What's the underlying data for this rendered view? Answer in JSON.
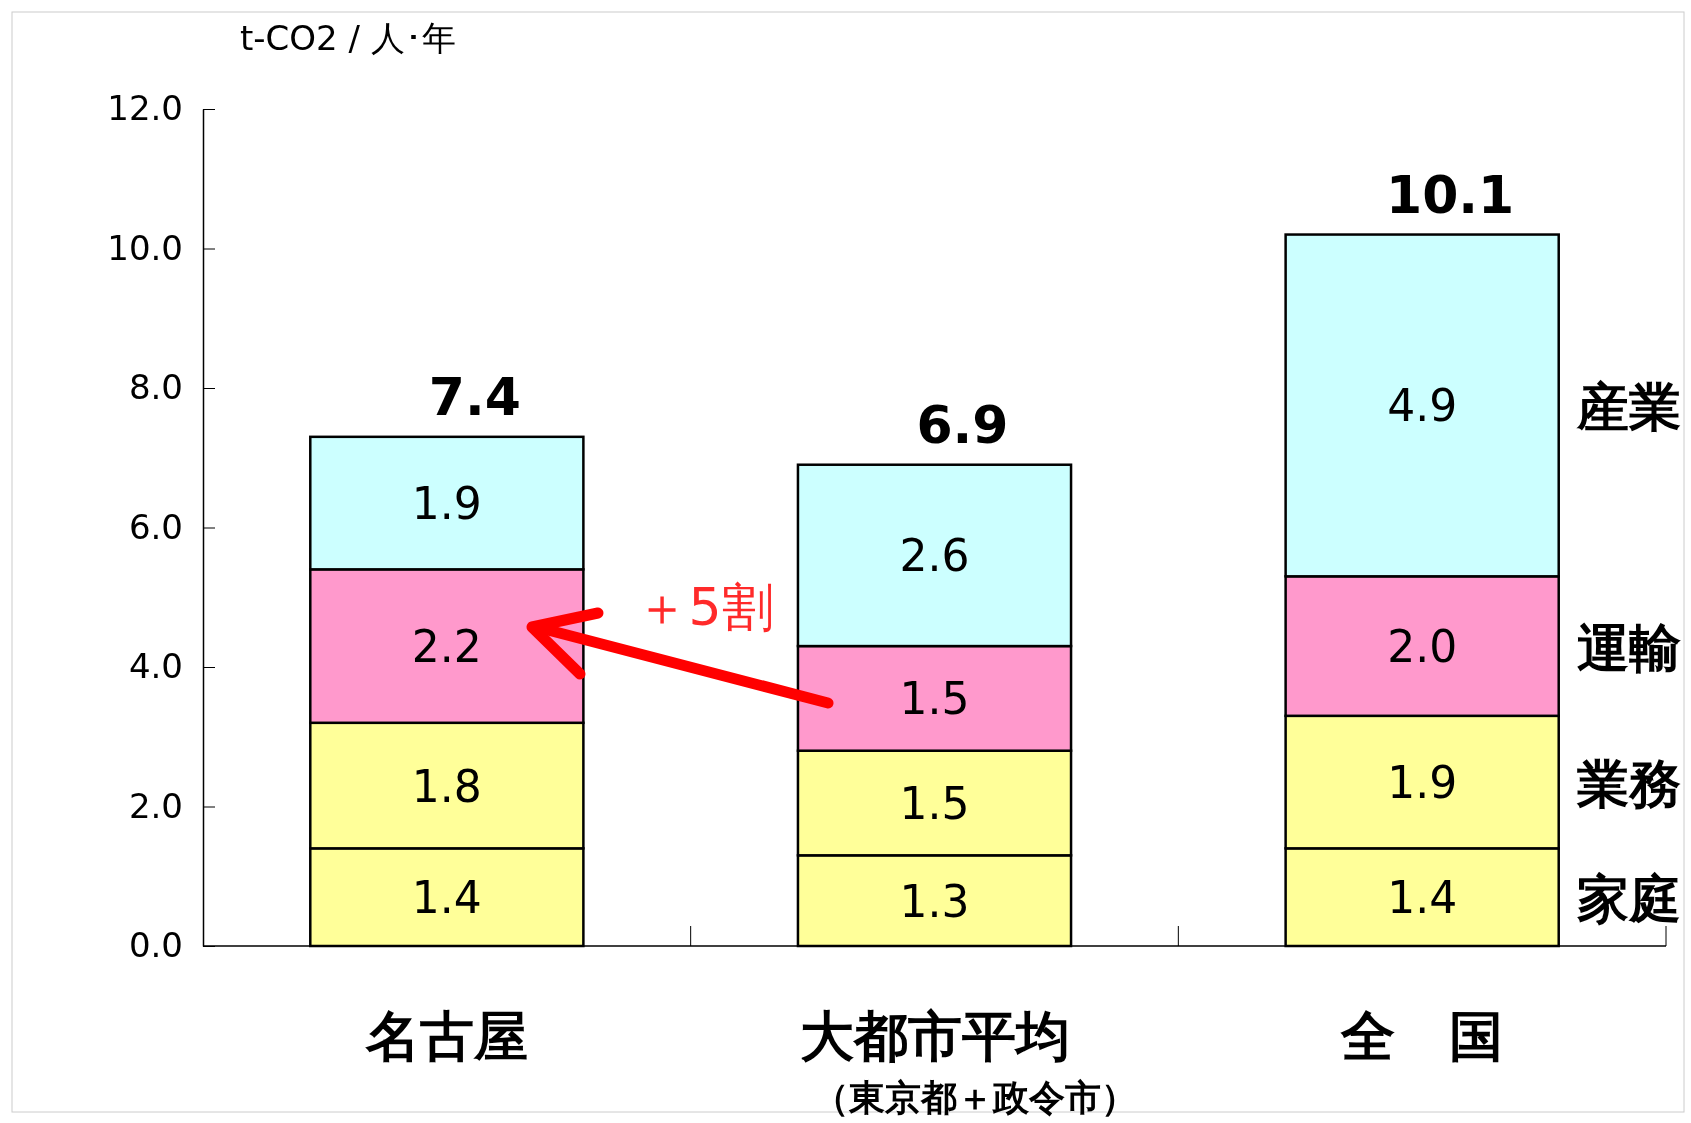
{
  "chart_data": {
    "type": "bar",
    "stacked": true,
    "ylabel": "t-CO2 / 人･年",
    "categories": [
      "名古屋",
      "大都市平均",
      "全　国"
    ],
    "series": [
      {
        "name": "家庭",
        "color": "#ffff99",
        "values": [
          1.4,
          1.3,
          1.4
        ]
      },
      {
        "name": "業務",
        "color": "#ffff99",
        "values": [
          1.8,
          1.5,
          1.9
        ]
      },
      {
        "name": "運輸",
        "color": "#ff99cc",
        "values": [
          2.2,
          1.5,
          2.0
        ],
        "value_labels": [
          "2.2",
          "1.5",
          "2.0"
        ]
      },
      {
        "name": "産業",
        "color": "#ccffff",
        "values": [
          1.9,
          2.6,
          4.9
        ]
      }
    ],
    "ylim": [
      0,
      12
    ],
    "yticks": [
      {
        "value": 0,
        "label": "0.0"
      },
      {
        "value": 2,
        "label": "2.0"
      },
      {
        "value": 4,
        "label": "4.0"
      },
      {
        "value": 6,
        "label": "6.0"
      },
      {
        "value": 8,
        "label": "8.0"
      },
      {
        "value": 10,
        "label": "10.0"
      },
      {
        "value": 12,
        "label": "12.0"
      }
    ],
    "data_labels": true,
    "totals": [
      "7.4",
      "6.9",
      "10.1"
    ],
    "annotations": [
      "（東京都＋政令市）",
      "＋5割"
    ]
  }
}
